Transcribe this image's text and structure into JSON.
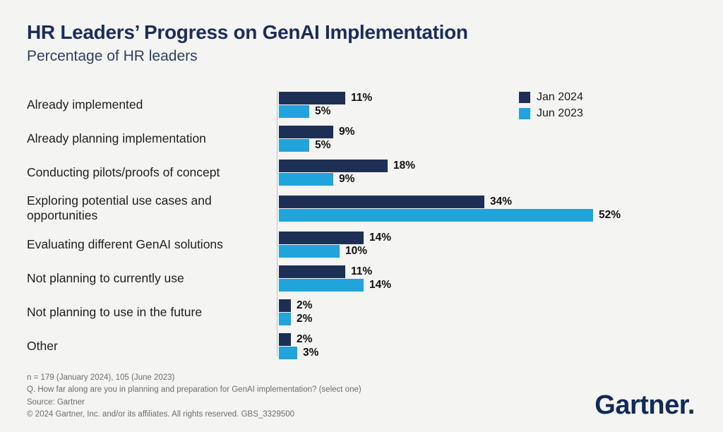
{
  "title": "HR Leaders’ Progress on GenAI Implementation",
  "subtitle": "Percentage of HR leaders",
  "legend": [
    {
      "label": "Jan 2024",
      "color": "#1e2f55"
    },
    {
      "label": "Jun 2023",
      "color": "#21a3dc"
    }
  ],
  "chart_data": {
    "type": "bar",
    "orientation": "horizontal",
    "title": "HR Leaders’ Progress on GenAI Implementation",
    "subtitle": "Percentage of HR leaders",
    "categories": [
      "Already implemented",
      "Already planning implementation",
      "Conducting pilots/proofs of concept",
      "Exploring potential use cases and opportunities",
      "Evaluating different GenAI solutions",
      "Not planning to currently use",
      "Not planning to use in the future",
      "Other"
    ],
    "series": [
      {
        "name": "Jan 2024",
        "color": "#1e2f55",
        "values": [
          11,
          9,
          18,
          34,
          14,
          11,
          2,
          2
        ]
      },
      {
        "name": "Jun 2023",
        "color": "#21a3dc",
        "values": [
          5,
          5,
          9,
          52,
          10,
          14,
          2,
          3
        ]
      }
    ],
    "value_suffix": "%",
    "xlim": [
      0,
      52
    ],
    "grid": false,
    "legend_position": "top-right",
    "data_labels": true
  },
  "footer": {
    "lines": [
      "n = 179 (January 2024), 105 (June 2023)",
      "Q. How far along are you in planning and preparation for GenAI implementation? (select one)",
      "Source: Gartner",
      "© 2024 Gartner, Inc. and/or its affiliates. All rights reserved. GBS_3329500"
    ]
  },
  "logo_text": "Gartner."
}
